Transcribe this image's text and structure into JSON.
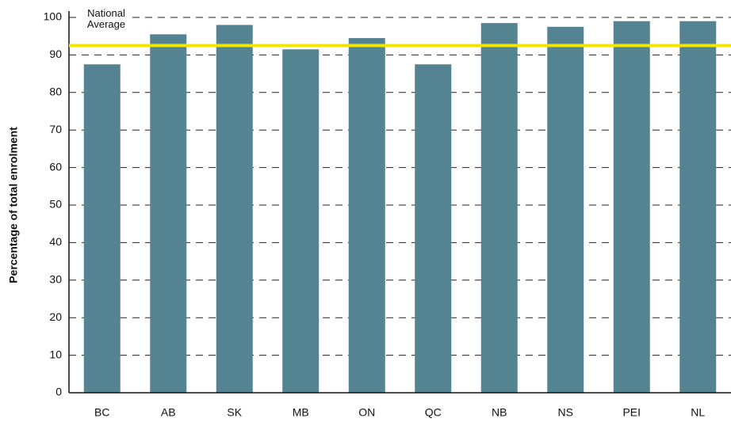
{
  "chart_data": {
    "type": "bar",
    "categories": [
      "BC",
      "AB",
      "SK",
      "MB",
      "ON",
      "QC",
      "NB",
      "NS",
      "PEI",
      "NL"
    ],
    "values": [
      87.5,
      95.5,
      98,
      91.5,
      94.5,
      87.5,
      98.5,
      97.5,
      99,
      99
    ],
    "color": "#548491",
    "ylabel": "Percentage of total enrolment",
    "ylim": [
      0,
      100
    ],
    "yticks": [
      0,
      10,
      20,
      30,
      40,
      50,
      60,
      70,
      80,
      90,
      100
    ],
    "grid": true,
    "reference_line": {
      "value": 92.5,
      "label": "National Average",
      "color": "#f2e600"
    }
  }
}
